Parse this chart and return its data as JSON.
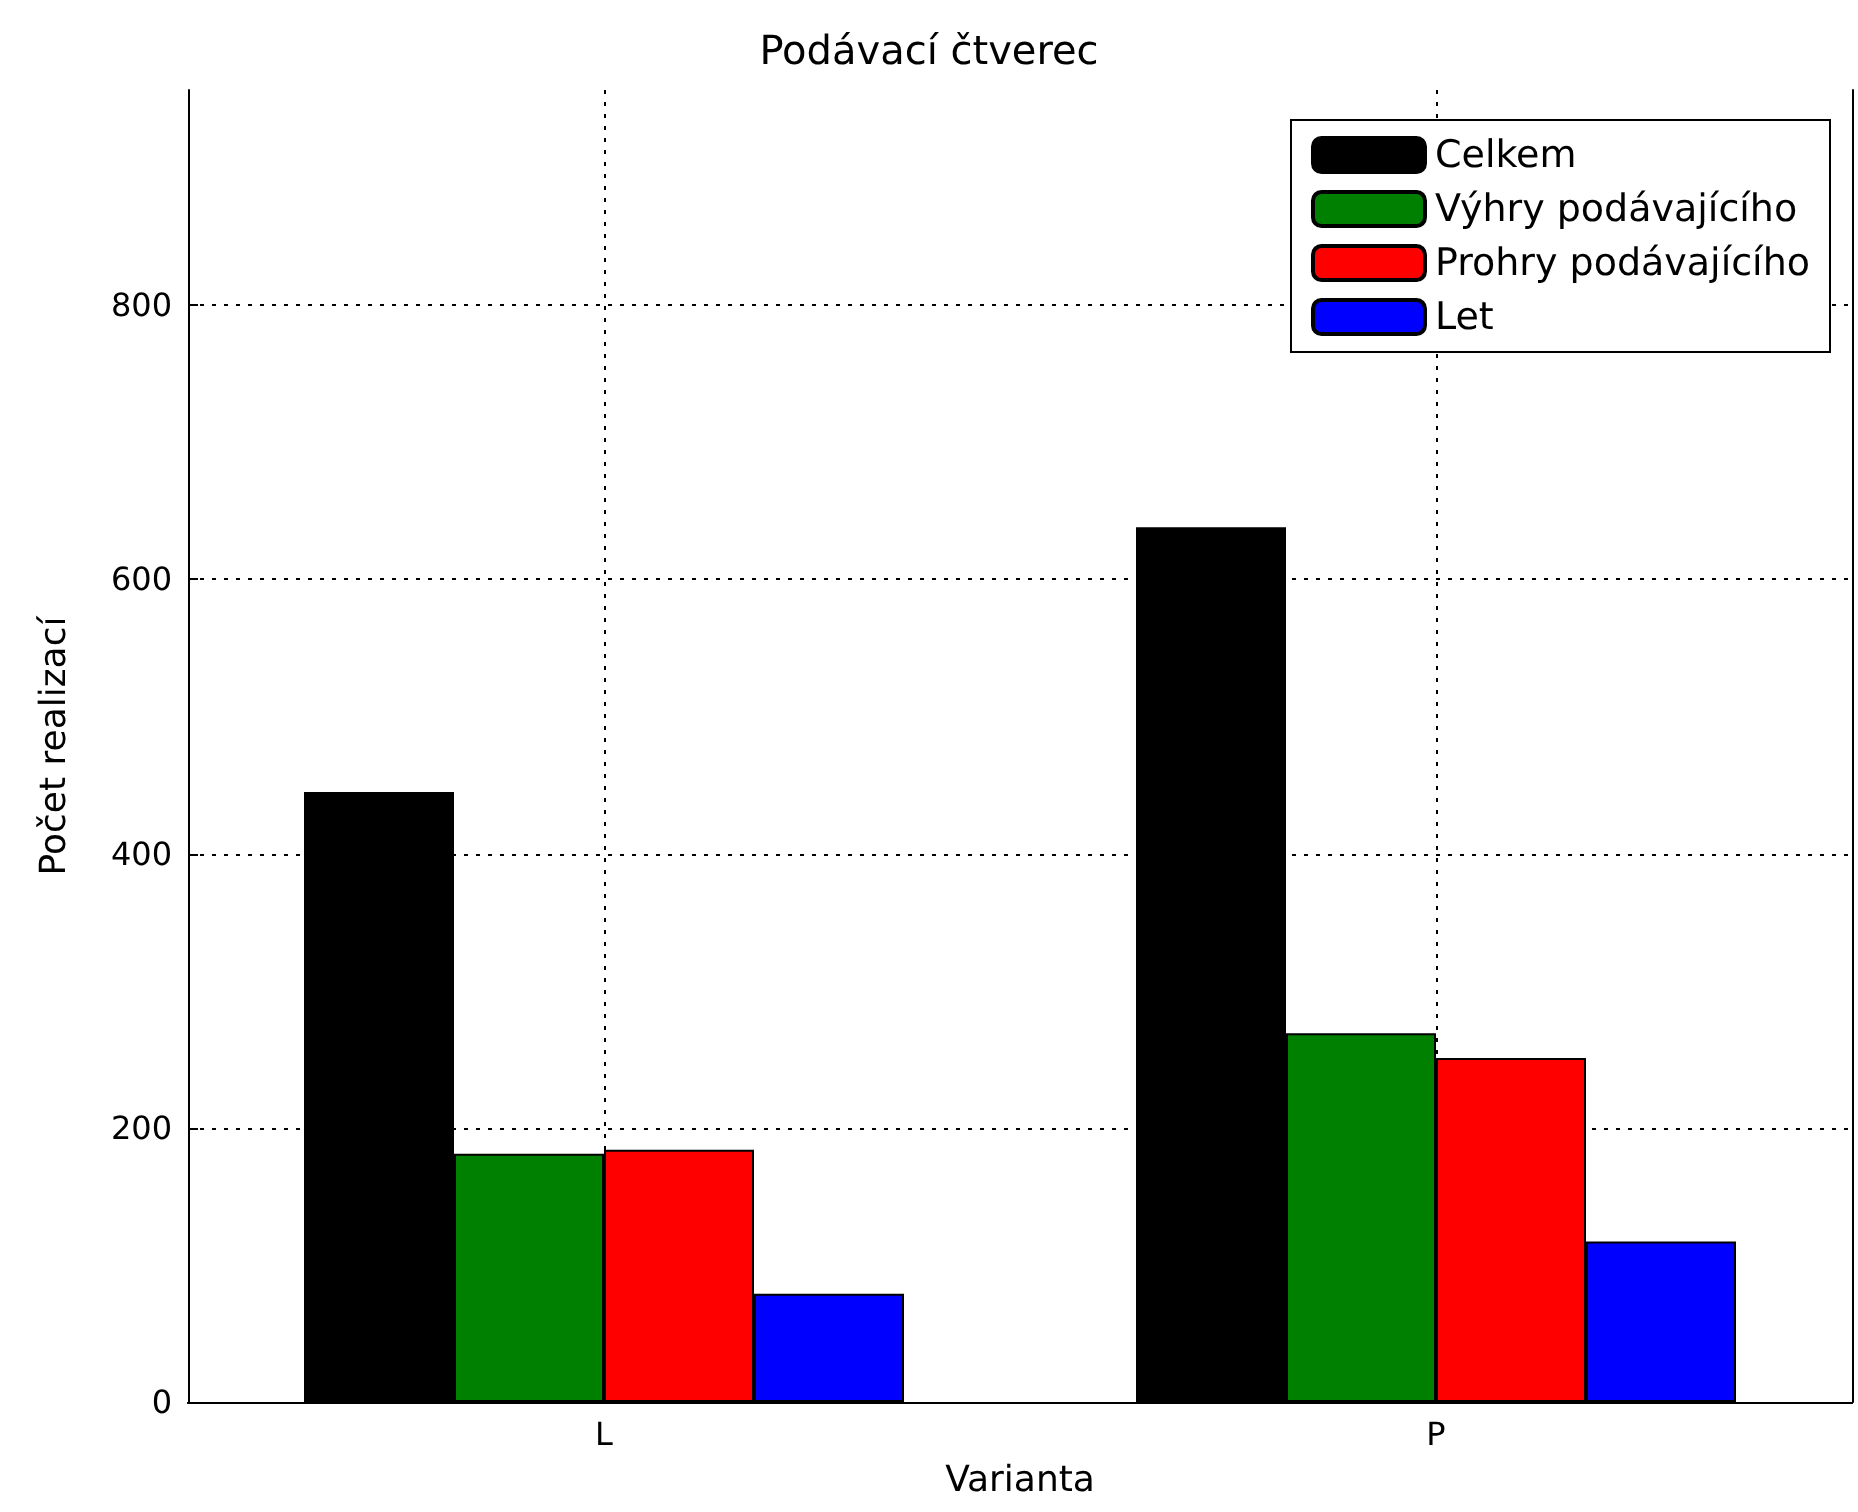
{
  "chart_data": {
    "type": "bar",
    "title": "Podávací čtverec",
    "xlabel": "Varianta",
    "ylabel": "Počet realizací",
    "categories": [
      "L",
      "P"
    ],
    "series": [
      {
        "name": "Celkem",
        "color": "#000000",
        "values": [
          445,
          638
        ]
      },
      {
        "name": "Výhry podávajícího",
        "color": "#008000",
        "values": [
          181,
          269
        ]
      },
      {
        "name": "Prohry podávajícího",
        "color": "#ff0000",
        "values": [
          184,
          251
        ]
      },
      {
        "name": "Let",
        "color": "#0000ff",
        "values": [
          79,
          117
        ]
      }
    ],
    "ylim": [
      0,
      957
    ],
    "yticks": [
      0,
      200,
      400,
      600,
      800
    ],
    "grid": true,
    "legend": "top right"
  }
}
